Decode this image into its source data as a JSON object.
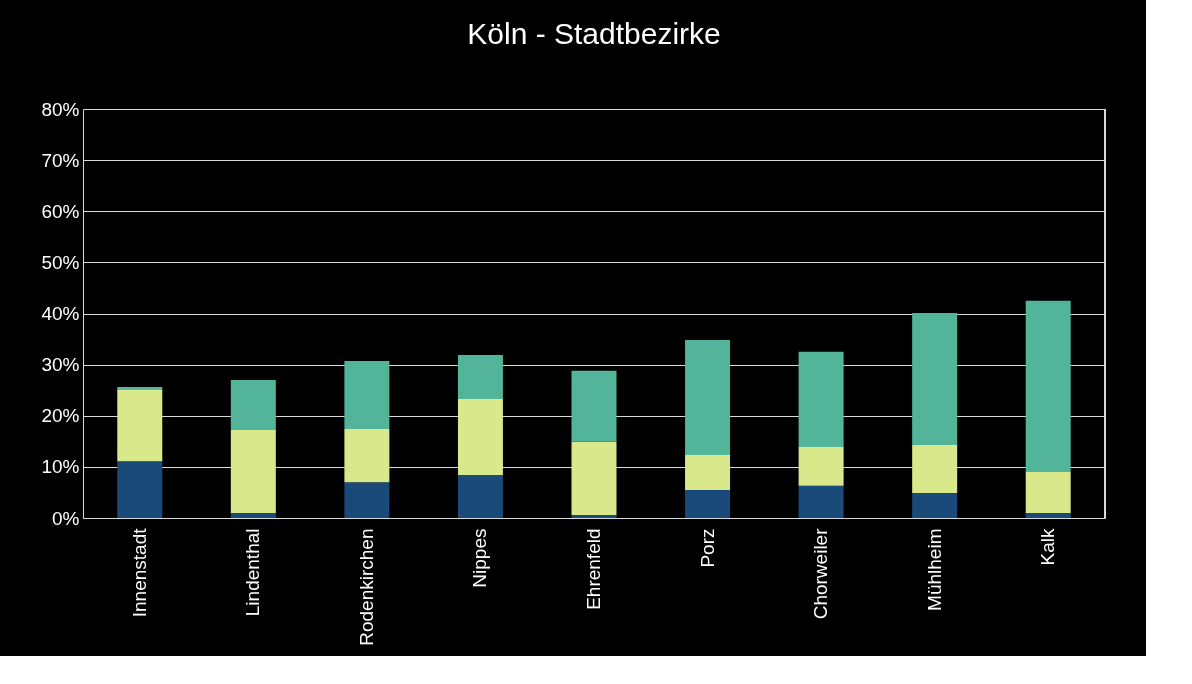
{
  "chart_data": {
    "type": "bar",
    "title": "Köln - Stadtbezirke",
    "stacked": true,
    "categories": [
      "Innenstadt",
      "Lindenthal",
      "Rodenkirchen",
      "Nippes",
      "Ehrenfeld",
      "Porz",
      "Chorweiler",
      "Mühlheim",
      "Kalk"
    ],
    "series": [
      {
        "color": "#1a4a7a",
        "values": [
          11.1,
          1.0,
          7.0,
          8.4,
          0.6,
          5.5,
          6.3,
          4.9,
          1.0
        ]
      },
      {
        "color": "#d8e88a",
        "values": [
          14.1,
          16.2,
          10.4,
          14.9,
          14.3,
          6.8,
          7.6,
          9.4,
          8.0
        ]
      },
      {
        "color": "#52b59a",
        "values": [
          0.4,
          9.8,
          13.3,
          8.6,
          13.9,
          22.5,
          18.6,
          25.8,
          33.5
        ]
      }
    ],
    "ylim": [
      0,
      80
    ],
    "yticks": [
      {
        "value": 0,
        "label": "0%"
      },
      {
        "value": 10,
        "label": "10%"
      },
      {
        "value": 20,
        "label": "20%"
      },
      {
        "value": 30,
        "label": "30%"
      },
      {
        "value": 40,
        "label": "40%"
      },
      {
        "value": 50,
        "label": "50%"
      },
      {
        "value": 60,
        "label": "60%"
      },
      {
        "value": 70,
        "label": "70%"
      },
      {
        "value": 80,
        "label": "80%"
      }
    ],
    "grid": "y",
    "legend": false
  }
}
